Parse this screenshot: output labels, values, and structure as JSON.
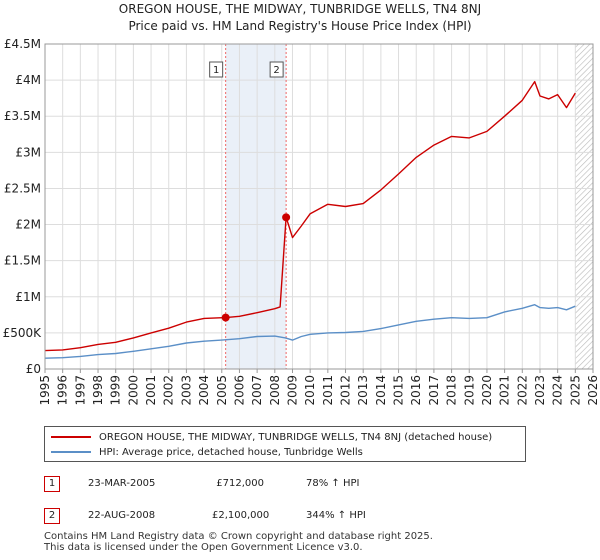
{
  "title": {
    "line1": "OREGON HOUSE, THE MIDWAY, TUNBRIDGE WELLS, TN4 8NJ",
    "line2": "Price paid vs. HM Land Registry's House Price Index (HPI)"
  },
  "colors": {
    "property": "#cc0000",
    "hpi": "#5b8fc7",
    "grid": "#dddddd",
    "sale_marker_line": "#ee6666",
    "shade": "#dce6f4"
  },
  "chart_data": {
    "type": "line",
    "title": "OREGON HOUSE, THE MIDWAY, TUNBRIDGE WELLS, TN4 8NJ — Price paid vs. HM Land Registry's House Price Index (HPI)",
    "xlabel": "",
    "ylabel": "",
    "xlim": [
      1995,
      2026
    ],
    "ylim": [
      0,
      4500000
    ],
    "y_ticks": [
      0,
      500000,
      1000000,
      1500000,
      2000000,
      2500000,
      3000000,
      3500000,
      4000000,
      4500000
    ],
    "y_tick_labels": [
      "£0",
      "£500K",
      "£1M",
      "£1.5M",
      "£2M",
      "£2.5M",
      "£3M",
      "£3.5M",
      "£4M",
      "£4.5M"
    ],
    "x_tick_labels": [
      "1995",
      "1996",
      "1997",
      "1998",
      "1999",
      "2000",
      "2001",
      "2002",
      "2003",
      "2004",
      "2005",
      "2006",
      "2007",
      "2008",
      "2009",
      "2010",
      "2011",
      "2012",
      "2013",
      "2014",
      "2015",
      "2016",
      "2017",
      "2018",
      "2019",
      "2020",
      "2021",
      "2022",
      "2023",
      "2024",
      "2025",
      "2026"
    ],
    "grid": true,
    "series": [
      {
        "name": "OREGON HOUSE, THE MIDWAY, TUNBRIDGE WELLS, TN4 8NJ (detached house)",
        "x": [
          1995,
          1996,
          1997,
          1998,
          1999,
          2000,
          2001,
          2002,
          2003,
          2004,
          2005.22,
          2006,
          2007,
          2008,
          2008.3,
          2008.64,
          2008.8,
          2009,
          2009.5,
          2010,
          2011,
          2012,
          2013,
          2014,
          2015,
          2016,
          2017,
          2018,
          2019,
          2020,
          2021,
          2022,
          2022.7,
          2023,
          2023.5,
          2024,
          2024.5,
          2025
        ],
        "values": [
          255000,
          265000,
          295000,
          340000,
          370000,
          430000,
          500000,
          565000,
          650000,
          700000,
          712000,
          730000,
          780000,
          835000,
          860000,
          2100000,
          1980000,
          1820000,
          1980000,
          2150000,
          2280000,
          2250000,
          2290000,
          2480000,
          2700000,
          2930000,
          3100000,
          3220000,
          3200000,
          3290000,
          3500000,
          3720000,
          3980000,
          3780000,
          3740000,
          3800000,
          3620000,
          3820000
        ]
      },
      {
        "name": "HPI: Average price, detached house, Tunbridge Wells",
        "x": [
          1995,
          1996,
          1997,
          1998,
          1999,
          2000,
          2001,
          2002,
          2003,
          2004,
          2005,
          2006,
          2007,
          2008,
          2008.6,
          2009,
          2009.5,
          2010,
          2011,
          2012,
          2013,
          2014,
          2015,
          2016,
          2017,
          2018,
          2019,
          2020,
          2021,
          2022,
          2022.7,
          2023,
          2023.5,
          2024,
          2024.5,
          2025
        ],
        "values": [
          150000,
          157000,
          175000,
          200000,
          215000,
          245000,
          280000,
          315000,
          360000,
          385000,
          400000,
          420000,
          450000,
          455000,
          430000,
          400000,
          450000,
          480000,
          500000,
          505000,
          520000,
          560000,
          610000,
          660000,
          690000,
          710000,
          700000,
          710000,
          790000,
          840000,
          890000,
          850000,
          840000,
          850000,
          820000,
          870000
        ]
      }
    ],
    "annotations": [
      {
        "label": "1",
        "x": 2005.22
      },
      {
        "label": "2",
        "x": 2008.64
      }
    ],
    "shaded_from": 2025.0
  },
  "legend": {
    "property_label": "OREGON HOUSE, THE MIDWAY, TUNBRIDGE WELLS, TN4 8NJ (detached house)",
    "hpi_label": "HPI: Average price, detached house, Tunbridge Wells"
  },
  "sales": [
    {
      "num": "1",
      "date": "23-MAR-2005",
      "price": "£712,000",
      "hpi": "78% ↑ HPI"
    },
    {
      "num": "2",
      "date": "22-AUG-2008",
      "price": "£2,100,000",
      "hpi": "344% ↑ HPI"
    }
  ],
  "footer": {
    "line1": "Contains HM Land Registry data © Crown copyright and database right 2025.",
    "line2": "This data is licensed under the Open Government Licence v3.0."
  }
}
